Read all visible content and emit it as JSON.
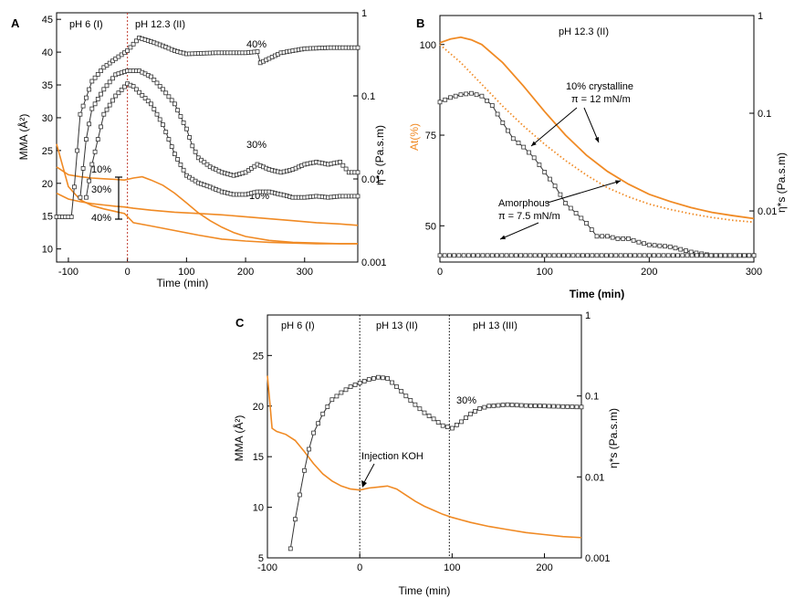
{
  "chart_data": [
    {
      "panel": "A",
      "type": "line",
      "xlabel": "Time (min)",
      "ylabel_left": "MMA (Å²)",
      "ylabel_right": "η*s (Pa.s.m)",
      "xlim": [
        -120,
        390
      ],
      "ylim_left": [
        8,
        46
      ],
      "ylim_right": [
        0.001,
        1
      ],
      "y_right_scale": "log",
      "xticks": [
        "-100",
        "0",
        "100",
        "200",
        "300"
      ],
      "yticks_left": [
        "10",
        "15",
        "20",
        "25",
        "30",
        "35",
        "40",
        "45"
      ],
      "yticks_right": [
        "0.001",
        "0.01",
        "0.1",
        "1"
      ],
      "regions": [
        "pH 6 (I)",
        "pH 12.3 (II)"
      ],
      "injection_time": 0,
      "mma_series": [
        {
          "name": "10%",
          "x": [
            -120,
            -100,
            -80,
            -60,
            -40,
            -20,
            -5,
            10,
            25,
            40,
            60,
            80,
            100,
            120,
            140,
            160,
            180,
            200,
            240,
            280,
            320,
            360,
            390
          ],
          "y": [
            22.5,
            21.3,
            21.0,
            20.8,
            20.7,
            20.6,
            20.5,
            20.8,
            21.0,
            20.5,
            19.7,
            18.5,
            17.0,
            15.5,
            14.3,
            13.3,
            12.5,
            11.9,
            11.3,
            11.0,
            10.9,
            10.8,
            10.8
          ]
        },
        {
          "name": "30%",
          "x": [
            -120,
            -100,
            -80,
            -60,
            -40,
            -20,
            -5,
            10,
            40,
            80,
            120,
            160,
            200,
            240,
            280,
            320,
            360,
            390
          ],
          "y": [
            18.5,
            17.6,
            17.2,
            16.9,
            16.7,
            16.5,
            16.4,
            16.2,
            15.9,
            15.6,
            15.4,
            15.2,
            14.9,
            14.6,
            14.3,
            14.0,
            13.8,
            13.6
          ]
        },
        {
          "name": "40%",
          "x": [
            -120,
            -100,
            -80,
            -60,
            -40,
            -20,
            -5,
            10,
            40,
            80,
            120,
            160,
            200,
            240,
            280,
            320,
            360,
            390
          ],
          "y": [
            26.0,
            19.5,
            17.5,
            16.6,
            16.1,
            15.7,
            15.4,
            14.0,
            13.5,
            12.8,
            12.1,
            11.5,
            11.2,
            11.0,
            10.9,
            10.8,
            10.8,
            10.8
          ]
        }
      ],
      "viscosity_series": [
        {
          "name": "40%",
          "x": [
            -120,
            -95,
            -90,
            -80,
            -60,
            -40,
            -20,
            0,
            10,
            20,
            40,
            60,
            80,
            100,
            150,
            200,
            220,
            225,
            260,
            300,
            340,
            390
          ],
          "y": [
            0.0035,
            0.0035,
            0.008,
            0.06,
            0.15,
            0.22,
            0.28,
            0.35,
            0.42,
            0.5,
            0.45,
            0.4,
            0.35,
            0.32,
            0.33,
            0.33,
            0.34,
            0.25,
            0.33,
            0.37,
            0.38,
            0.38
          ]
        },
        {
          "name": "30%",
          "x": [
            -80,
            -70,
            -60,
            -40,
            -20,
            0,
            20,
            40,
            60,
            80,
            100,
            110,
            120,
            140,
            160,
            180,
            200,
            220,
            240,
            260,
            280,
            300,
            320,
            340,
            360,
            375,
            390
          ],
          "y": [
            0.006,
            0.03,
            0.07,
            0.12,
            0.18,
            0.2,
            0.2,
            0.17,
            0.12,
            0.08,
            0.04,
            0.025,
            0.018,
            0.014,
            0.012,
            0.011,
            0.012,
            0.015,
            0.013,
            0.012,
            0.013,
            0.015,
            0.016,
            0.015,
            0.016,
            0.012,
            0.012
          ]
        },
        {
          "name": "10%",
          "x": [
            -70,
            -60,
            -40,
            -20,
            0,
            10,
            20,
            40,
            60,
            80,
            100,
            120,
            140,
            160,
            180,
            200,
            220,
            240,
            260,
            280,
            300,
            320,
            340,
            360,
            390
          ],
          "y": [
            0.006,
            0.015,
            0.06,
            0.1,
            0.14,
            0.13,
            0.11,
            0.08,
            0.045,
            0.02,
            0.011,
            0.009,
            0.008,
            0.007,
            0.0065,
            0.0065,
            0.007,
            0.007,
            0.0065,
            0.006,
            0.006,
            0.0062,
            0.006,
            0.0062,
            0.0062
          ]
        }
      ],
      "labels": {
        "label_40_top": "40%",
        "label_30_mid": "30%",
        "label_10_low": "10%",
        "left_10": "10%",
        "left_30": "30%",
        "left_40": "40%"
      }
    },
    {
      "panel": "B",
      "type": "line",
      "title": "pH 12.3 (II)",
      "xlabel": "Time (min)",
      "ylabel_left": "At(%)",
      "ylabel_right": "η*s (Pa.s.m)",
      "xlim": [
        0,
        300
      ],
      "ylim_left": [
        40,
        108
      ],
      "ylim_right": [
        0.003,
        1
      ],
      "y_right_scale": "log",
      "xticks": [
        "0",
        "100",
        "200",
        "300"
      ],
      "yticks_left": [
        "50",
        "75",
        "100"
      ],
      "yticks_right": [
        "0.01",
        "0.1",
        "1"
      ],
      "at_series": [
        {
          "name": "10% crystalline",
          "style": "solid",
          "x": [
            0,
            10,
            20,
            30,
            40,
            60,
            80,
            100,
            120,
            140,
            160,
            180,
            200,
            220,
            240,
            260,
            280,
            300
          ],
          "y": [
            100.5,
            101.5,
            102.0,
            101.3,
            100.0,
            95.0,
            88.5,
            81.5,
            75.0,
            69.5,
            65.0,
            61.5,
            58.7,
            56.7,
            55.0,
            53.7,
            52.8,
            52.0
          ]
        },
        {
          "name": "Amorphous",
          "style": "dotted",
          "x": [
            0,
            20,
            40,
            60,
            80,
            100,
            120,
            140,
            160,
            180,
            200,
            220,
            240,
            260,
            280,
            300
          ],
          "y": [
            100.0,
            95.0,
            89.0,
            83.0,
            77.5,
            72.5,
            68.0,
            64.0,
            60.5,
            58.0,
            56.0,
            54.5,
            53.3,
            52.3,
            51.5,
            51.0
          ]
        }
      ],
      "viscosity_series": [
        {
          "name": "10% crystalline",
          "x": [
            0,
            10,
            20,
            30,
            40,
            50,
            60,
            70,
            80,
            90,
            100,
            110,
            120,
            130,
            140,
            150,
            160,
            170,
            180,
            190,
            200,
            220,
            240,
            260,
            280,
            300
          ],
          "y": [
            0.13,
            0.145,
            0.155,
            0.16,
            0.15,
            0.12,
            0.08,
            0.055,
            0.045,
            0.035,
            0.025,
            0.018,
            0.012,
            0.0095,
            0.0075,
            0.0055,
            0.0055,
            0.0052,
            0.0052,
            0.0048,
            0.0045,
            0.0043,
            0.0038,
            0.0035,
            0.0035,
            0.0035
          ]
        },
        {
          "name": "Amorphous",
          "x": [
            0,
            50,
            100,
            150,
            200,
            250,
            300
          ],
          "y": [
            0.0035,
            0.0035,
            0.0035,
            0.0035,
            0.0035,
            0.0035,
            0.0035
          ]
        }
      ],
      "labels": {
        "cryst_line1": "10% crystalline",
        "cryst_line2": "π = 12 mN/m",
        "amorph_line1": "Amorphous",
        "amorph_line2": "π = 7.5 mN/m"
      }
    },
    {
      "panel": "C",
      "type": "line",
      "xlabel": "Time (min)",
      "ylabel_left": "MMA (Å²)",
      "ylabel_right": "η*s (Pa.s.m)",
      "xlim": [
        -100,
        240
      ],
      "ylim_left": [
        5,
        29
      ],
      "ylim_right": [
        0.001,
        1
      ],
      "y_right_scale": "log",
      "xticks": [
        "-100",
        "0",
        "100",
        "200"
      ],
      "yticks_left": [
        "5",
        "10",
        "15",
        "20",
        "25"
      ],
      "yticks_right": [
        "0.001",
        "0.01",
        "0.1",
        "1"
      ],
      "regions": [
        "pH 6 (I)",
        "pH 13 (II)",
        "pH 13 (III)"
      ],
      "region_boundaries": [
        0,
        97
      ],
      "mma_series": {
        "x": [
          -100,
          -97,
          -95,
          -90,
          -80,
          -70,
          -60,
          -50,
          -40,
          -30,
          -20,
          -10,
          0,
          10,
          20,
          30,
          40,
          50,
          60,
          70,
          80,
          90,
          100,
          120,
          140,
          160,
          180,
          200,
          220,
          240
        ],
        "y": [
          23.0,
          20.0,
          17.8,
          17.5,
          17.2,
          16.6,
          15.5,
          14.3,
          13.3,
          12.6,
          12.1,
          11.8,
          11.7,
          11.9,
          12.0,
          12.1,
          11.8,
          11.2,
          10.6,
          10.1,
          9.7,
          9.3,
          9.0,
          8.5,
          8.1,
          7.8,
          7.5,
          7.3,
          7.1,
          7.0
        ]
      },
      "viscosity_series": {
        "name": "30%",
        "x": [
          -75,
          -70,
          -65,
          -60,
          -55,
          -50,
          -40,
          -30,
          -20,
          -10,
          0,
          10,
          20,
          30,
          40,
          50,
          60,
          70,
          80,
          90,
          100,
          110,
          120,
          130,
          140,
          160,
          180,
          200,
          220,
          240
        ],
        "y": [
          0.0013,
          0.003,
          0.006,
          0.012,
          0.022,
          0.035,
          0.06,
          0.09,
          0.11,
          0.13,
          0.145,
          0.16,
          0.17,
          0.165,
          0.13,
          0.1,
          0.078,
          0.062,
          0.052,
          0.043,
          0.04,
          0.048,
          0.06,
          0.07,
          0.075,
          0.078,
          0.076,
          0.075,
          0.074,
          0.073
        ]
      },
      "labels": {
        "series": "30%",
        "injection": "Injection KOH"
      }
    }
  ],
  "panel_letters": {
    "a": "A",
    "b": "B",
    "c": "C"
  },
  "colors": {
    "orange": "#f08a24",
    "black": "#333333",
    "inj_line": "#c0392b"
  }
}
